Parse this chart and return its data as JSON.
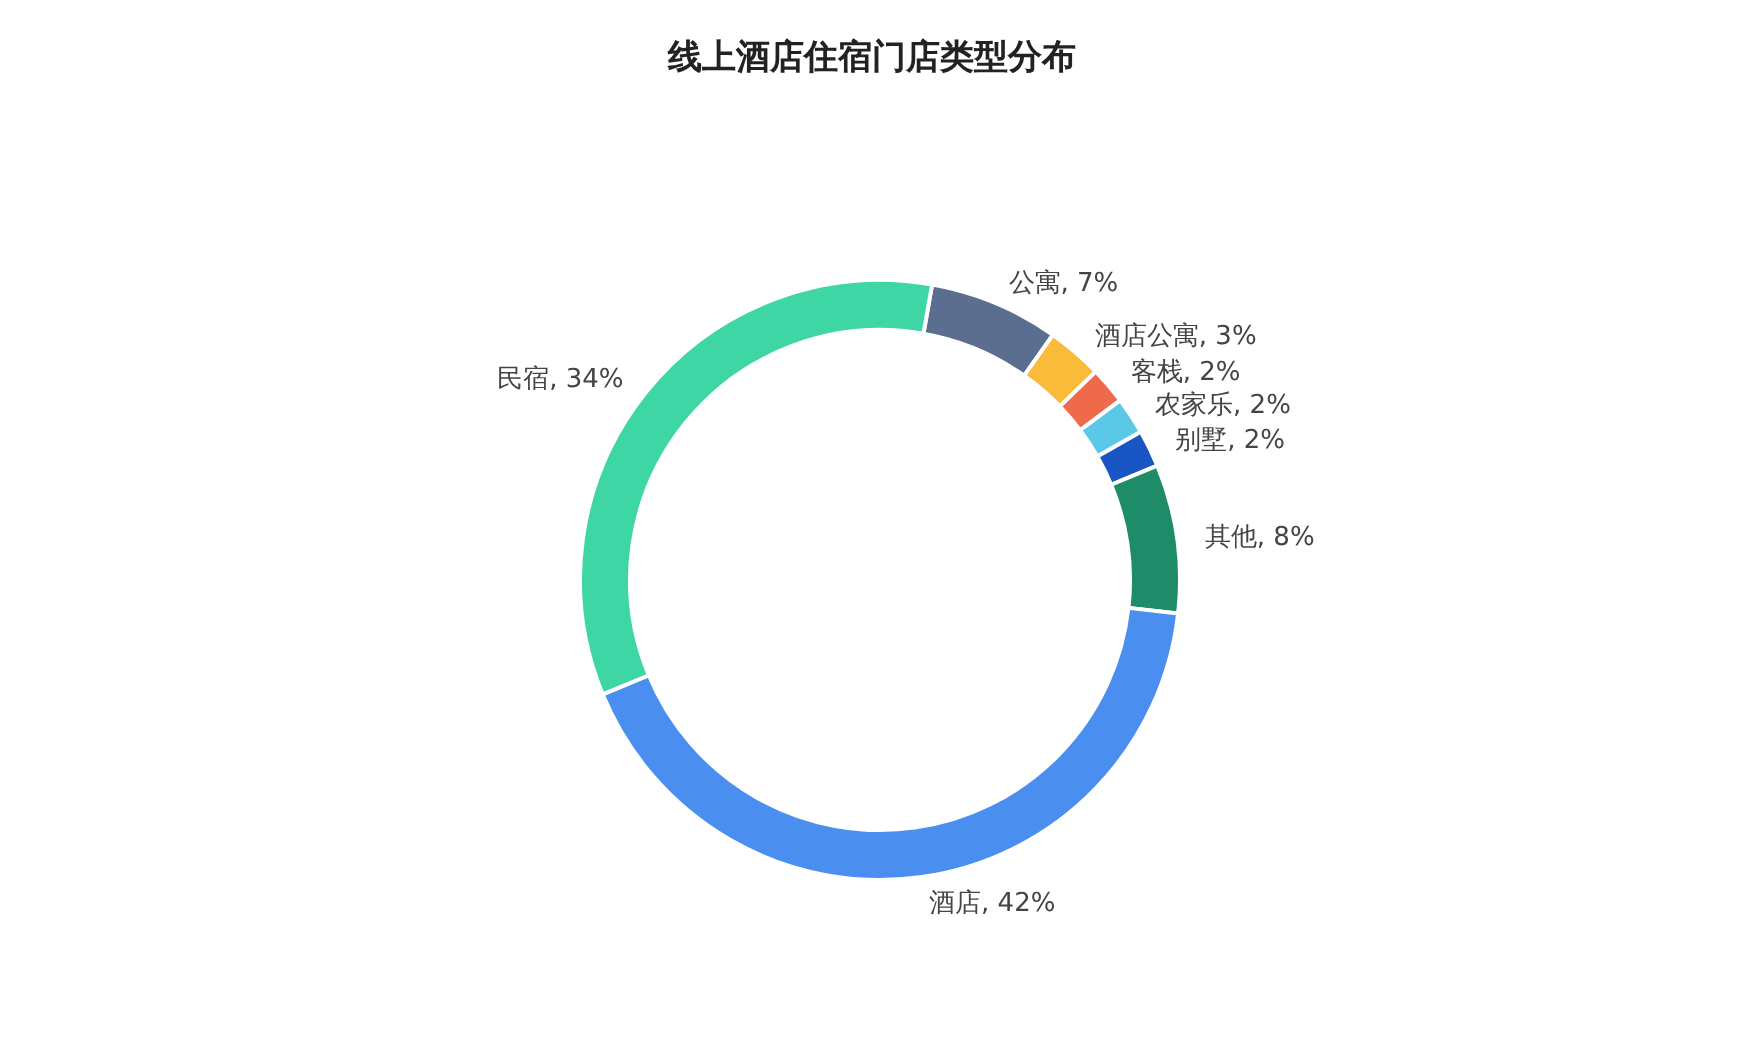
{
  "chart_data": {
    "type": "donut",
    "title": "线上酒店住宿门店类型分布",
    "categories": [
      "公寓",
      "酒店公寓",
      "客栈",
      "农家乐",
      "别墅",
      "其他",
      "酒店",
      "民宿"
    ],
    "values": [
      7,
      3,
      2,
      2,
      2,
      8,
      42,
      34
    ],
    "value_labels": [
      "7%",
      "3%",
      "2%",
      "2%",
      "2%",
      "8%",
      "42%",
      "34%"
    ],
    "colors": [
      "#5b6e8f",
      "#f9bc3a",
      "#ef6a4a",
      "#5bc8e8",
      "#1a55c4",
      "#1e8c69",
      "#4a8ff0",
      "#3fd6a6"
    ]
  }
}
